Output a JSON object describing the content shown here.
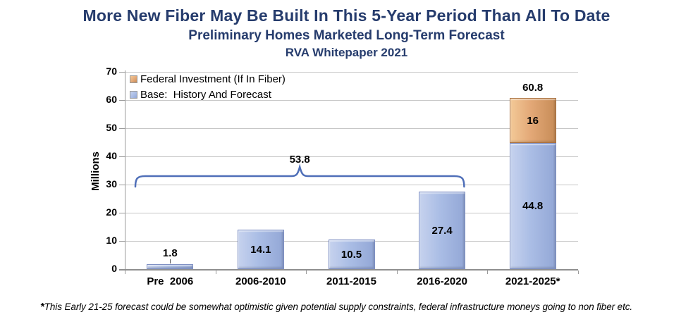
{
  "header": {
    "title": "More New Fiber May Be Built In This 5-Year Period Than All To Date",
    "subtitle": "Preliminary Homes Marketed Long-Term Forecast",
    "source_line": "RVA Whitepaper 2021",
    "title_color": "#263c6d"
  },
  "legend": {
    "items": [
      {
        "label": "Federal Investment (If In Fiber)",
        "series": "federal"
      },
      {
        "label": "Base:  History And Forecast",
        "series": "base"
      }
    ]
  },
  "chart_data": {
    "type": "bar",
    "stacked": true,
    "title": "More New Fiber May Be Built In This 5-Year Period Than All To Date",
    "subtitle": "Preliminary Homes Marketed Long-Term Forecast",
    "source": "RVA Whitepaper 2021",
    "categories": [
      "Pre  2006",
      "2006-2010",
      "2011-2015",
      "2016-2020",
      "2021-2025*"
    ],
    "series": [
      {
        "name": "Base:  History And Forecast",
        "key": "base",
        "values": [
          1.8,
          14.1,
          10.5,
          27.4,
          44.8
        ],
        "colors": {
          "light": "#c6d2ee",
          "mid": "#aabde5",
          "dark": "#93a7d6",
          "border": "#7e8fc3"
        }
      },
      {
        "name": "Federal Investment (If In Fiber)",
        "key": "federal",
        "values": [
          0,
          0,
          0,
          0,
          16
        ],
        "colors": {
          "light": "#f3c997",
          "mid": "#e3a877",
          "dark": "#c78c57",
          "border": "#a9713f"
        }
      }
    ],
    "bar_value_labels": [
      [
        "1.8",
        "14.1",
        "10.5",
        "27.4",
        "44.8"
      ],
      [
        "",
        "",
        "",
        "",
        "16"
      ]
    ],
    "total_labels": [
      {
        "category_index": 4,
        "label": "60.8"
      }
    ],
    "annotation_bracket": {
      "label": "53.8",
      "from_category": 0,
      "to_category": 3,
      "level": 33,
      "color": "#4f6fb8"
    },
    "xlabel": "",
    "ylabel": "Millions",
    "ylim": [
      0,
      70
    ],
    "yticks": [
      0,
      10,
      20,
      30,
      40,
      50,
      60,
      70
    ],
    "grid": true,
    "legend_position": "inside-top-left"
  },
  "footnote": {
    "marker": "*",
    "text": "This Early 21-25 forecast could be somewhat optimistic given potential supply constraints, federal infrastructure moneys going to non fiber etc."
  },
  "colors": {
    "background": "#ffffff",
    "gridline": "#c6c6c6",
    "axis": "#9a9a9a",
    "x_axis_line": "#8f8f8f",
    "value_text": "#000000"
  }
}
